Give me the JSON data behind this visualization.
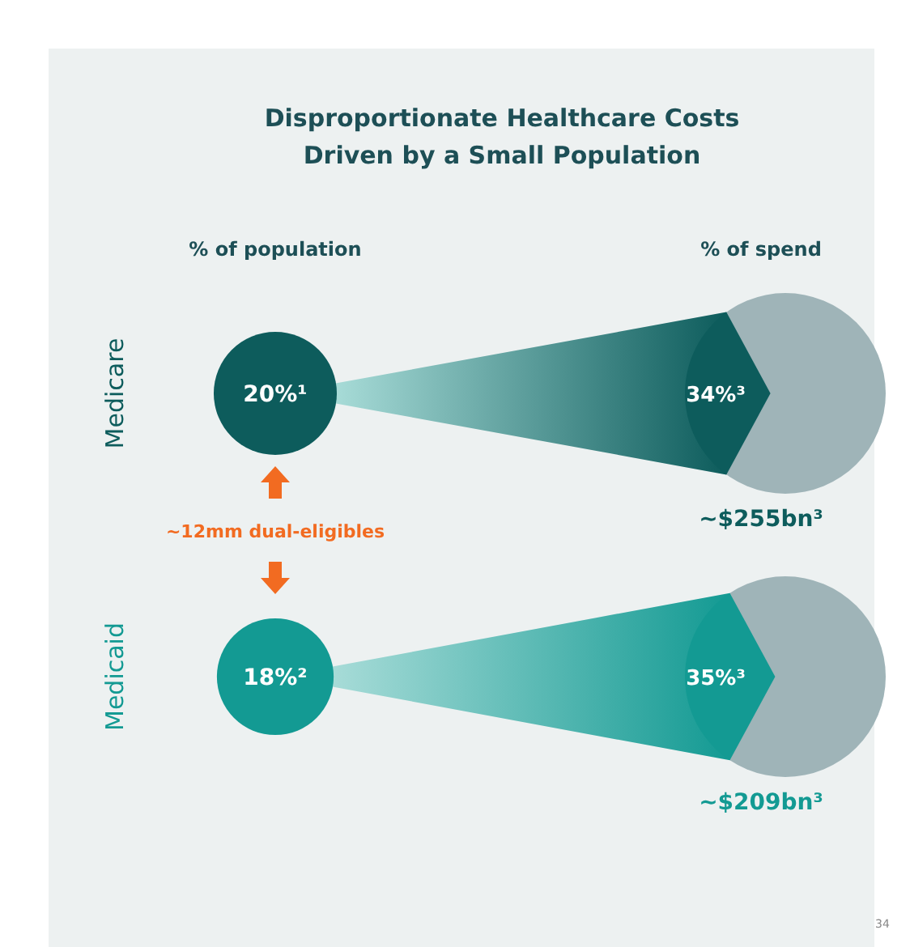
{
  "chart_data": {
    "type": "other",
    "title": "Disproportionate Healthcare Costs\nDriven by a Small Population",
    "categories": [
      "% of population",
      "% of spend"
    ],
    "series": [
      {
        "name": "Medicare",
        "color": "#0d5c5c",
        "values": [
          20,
          34
        ],
        "value_labels": [
          "20%¹",
          "34%³"
        ]
      },
      {
        "name": "Medicaid",
        "color": "#139a93",
        "values": [
          18,
          35
        ],
        "value_labels": [
          "18%²",
          "35%³"
        ]
      }
    ],
    "annotations": [
      {
        "text": "~$255bn³",
        "x": "% of spend"
      },
      {
        "text": "~$209bn³",
        "x": "% of spend"
      },
      "~12mm dual-eligibles",
      "34"
    ]
  }
}
